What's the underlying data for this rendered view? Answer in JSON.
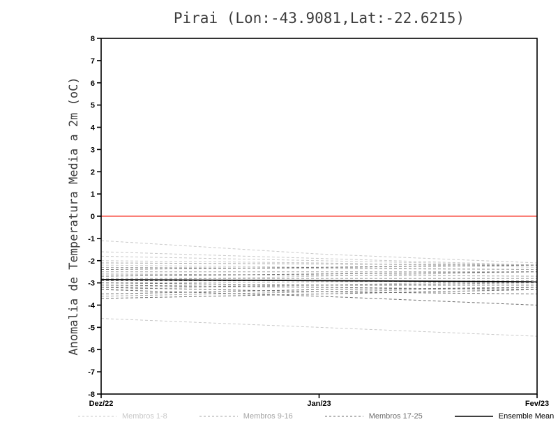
{
  "title": "Pirai (Lon:-43.9081,Lat:-22.6215)",
  "y_axis_label": "Anomalia de Temperatura Media a 2m (oC)",
  "chart_data": {
    "type": "line",
    "title": "Pirai (Lon:-43.9081,Lat:-22.6215)",
    "xlabel": "",
    "ylabel": "Anomalia de Temperatura Media a 2m (oC)",
    "x": [
      "Dez/22",
      "Jan/23",
      "Fev/23"
    ],
    "ylim": [
      -8,
      8
    ],
    "ytick_step": 1,
    "grid": false,
    "legend_position": "bottom",
    "zero_line": {
      "value": 0,
      "color": "#f9564b"
    },
    "frame_color": "#000000",
    "groups": [
      {
        "name": "Membros 1-8",
        "color": "#c9c9c9",
        "dashed": true,
        "series": [
          [
            -1.1,
            -1.7,
            -2.1
          ],
          [
            -1.6,
            -1.9,
            -2.2
          ],
          [
            -1.8,
            -2.0,
            -2.2
          ],
          [
            -2.0,
            -2.1,
            -2.3
          ],
          [
            -2.2,
            -2.3,
            -2.4
          ],
          [
            -2.9,
            -2.7,
            -2.5
          ],
          [
            -3.3,
            -3.1,
            -2.9
          ],
          [
            -4.6,
            -5.0,
            -5.4
          ]
        ]
      },
      {
        "name": "Membros 9-16",
        "color": "#a4a4a4",
        "dashed": true,
        "series": [
          [
            -2.1,
            -2.15,
            -2.2
          ],
          [
            -2.3,
            -2.35,
            -2.4
          ],
          [
            -2.5,
            -2.5,
            -2.5
          ],
          [
            -2.6,
            -2.65,
            -2.7
          ],
          [
            -2.8,
            -2.8,
            -2.8
          ],
          [
            -3.0,
            -2.95,
            -2.9
          ],
          [
            -3.2,
            -3.1,
            -3.0
          ],
          [
            -3.6,
            -3.4,
            -3.2
          ]
        ]
      },
      {
        "name": "Membros 17-25",
        "color": "#6e6e6e",
        "dashed": true,
        "series": [
          [
            -2.4,
            -2.3,
            -2.2
          ],
          [
            -2.7,
            -2.6,
            -2.5
          ],
          [
            -2.9,
            -2.9,
            -3.0
          ],
          [
            -3.0,
            -3.1,
            -3.1
          ],
          [
            -3.1,
            -3.2,
            -3.3
          ],
          [
            -3.2,
            -3.4,
            -3.5
          ],
          [
            -3.3,
            -3.6,
            -4.0
          ],
          [
            -3.5,
            -3.3,
            -3.2
          ],
          [
            -3.7,
            -3.5,
            -3.3
          ]
        ]
      },
      {
        "name": "Ensemble Mean",
        "color": "#000000",
        "dashed": false,
        "series": [
          [
            -2.85,
            -2.9,
            -2.95
          ]
        ]
      }
    ]
  }
}
